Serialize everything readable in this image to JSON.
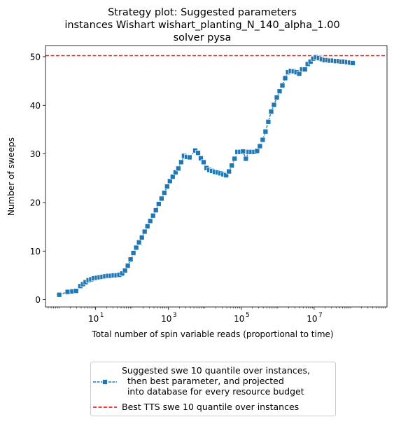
{
  "chart_data": {
    "type": "line",
    "title": [
      "Strategy plot: Suggested parameters",
      "instances Wishart wishart_planting_N_140_alpha_1.00",
      "solver pysa"
    ],
    "xlabel": "Total number of spin variable reads (proportional to time)",
    "ylabel": "Number of sweeps",
    "xscale": "log",
    "xlim": [
      0.42,
      1000000000.0
    ],
    "ylim": [
      -1.5,
      52.3
    ],
    "xticks": [
      {
        "value": 10,
        "label": "10",
        "exp": "1"
      },
      {
        "value": 1000,
        "label": "10",
        "exp": "3"
      },
      {
        "value": 100000,
        "label": "10",
        "exp": "5"
      },
      {
        "value": 10000000,
        "label": "10",
        "exp": "7"
      }
    ],
    "yticks": [
      0,
      10,
      20,
      30,
      40,
      50
    ],
    "legend_position": "below",
    "series": [
      {
        "name": "Suggested swe 10 quantile over instances,\n  then best parameter, and projected\n  into database for every resource budget",
        "color": "#1f77b4",
        "marker": "square",
        "points": [
          [
            1.0,
            1.0
          ],
          [
            1.7,
            1.6
          ],
          [
            2.3,
            1.7
          ],
          [
            2.9,
            1.8
          ],
          [
            3.8,
            2.8
          ],
          [
            4.5,
            3.2
          ],
          [
            5.3,
            3.6
          ],
          [
            6.4,
            4.0
          ],
          [
            7.6,
            4.2
          ],
          [
            9.0,
            4.4
          ],
          [
            10.8,
            4.5
          ],
          [
            12.9,
            4.6
          ],
          [
            15.4,
            4.7
          ],
          [
            18.4,
            4.8
          ],
          [
            22.0,
            4.9
          ],
          [
            26.3,
            4.9
          ],
          [
            31.4,
            5.0
          ],
          [
            37.5,
            5.0
          ],
          [
            44.8,
            5.1
          ],
          [
            53.5,
            5.4
          ],
          [
            63.9,
            6.0
          ],
          [
            76.3,
            7.0
          ],
          [
            91.2,
            8.3
          ],
          [
            109,
            9.6
          ],
          [
            130,
            10.7
          ],
          [
            155,
            11.8
          ],
          [
            186,
            12.8
          ],
          [
            222,
            14.0
          ],
          [
            265,
            15.1
          ],
          [
            316,
            16.2
          ],
          [
            378,
            17.3
          ],
          [
            451,
            18.4
          ],
          [
            539,
            19.7
          ],
          [
            644,
            20.8
          ],
          [
            769,
            22.0
          ],
          [
            918,
            23.3
          ],
          [
            1097,
            24.4
          ],
          [
            1310,
            25.3
          ],
          [
            1565,
            26.2
          ],
          [
            1870,
            27.0
          ],
          [
            2233,
            28.3
          ],
          [
            2667,
            29.6
          ],
          [
            3186,
            29.4
          ],
          [
            3806,
            29.3
          ],
          [
            5432,
            30.7
          ],
          [
            6488,
            30.2
          ],
          [
            7751,
            29.1
          ],
          [
            9258,
            28.3
          ],
          [
            11059,
            27.1
          ],
          [
            13210,
            26.7
          ],
          [
            15780,
            26.5
          ],
          [
            18850,
            26.3
          ],
          [
            22516,
            26.2
          ],
          [
            26896,
            26.0
          ],
          [
            32127,
            25.8
          ],
          [
            38376,
            25.6
          ],
          [
            45841,
            26.4
          ],
          [
            54758,
            27.6
          ],
          [
            65410,
            29.0
          ],
          [
            78134,
            30.4
          ],
          [
            93333,
            30.4
          ],
          [
            111489,
            30.5
          ],
          [
            133175,
            29.0
          ],
          [
            159080,
            30.4
          ],
          [
            190025,
            30.4
          ],
          [
            226990,
            30.4
          ],
          [
            271144,
            30.6
          ],
          [
            323887,
            31.6
          ],
          [
            386890,
            32.9
          ],
          [
            462149,
            34.6
          ],
          [
            552048,
            36.6
          ],
          [
            659435,
            38.7
          ],
          [
            787710,
            40.1
          ],
          [
            940938,
            41.6
          ],
          [
            1123972,
            42.9
          ],
          [
            1342611,
            44.1
          ],
          [
            1603780,
            45.6
          ],
          [
            1915752,
            46.8
          ],
          [
            2288412,
            47.1
          ],
          [
            2733562,
            47.0
          ],
          [
            3265302,
            46.8
          ],
          [
            3900478,
            46.5
          ],
          [
            4659214,
            47.4
          ],
          [
            5565539,
            47.4
          ],
          [
            6648162,
            48.5
          ],
          [
            7941383,
            49.0
          ],
          [
            9486168,
            49.6
          ],
          [
            11331452,
            49.9
          ],
          [
            13535697,
            49.7
          ],
          [
            16168700,
            49.5
          ],
          [
            19313879,
            49.3
          ],
          [
            23070870,
            49.3
          ],
          [
            27558697,
            49.2
          ],
          [
            32919510,
            49.2
          ],
          [
            39323119,
            49.1
          ],
          [
            46972388,
            49.1
          ],
          [
            56109622,
            49.0
          ],
          [
            67024286,
            49.0
          ],
          [
            80062104,
            48.9
          ],
          [
            95636117,
            48.8
          ],
          [
            114239702,
            48.7
          ]
        ]
      },
      {
        "name": "Best TTS swe 10 quantile over instances",
        "color": "#ff0000",
        "style": "dashed",
        "hline": 50.2
      }
    ]
  }
}
